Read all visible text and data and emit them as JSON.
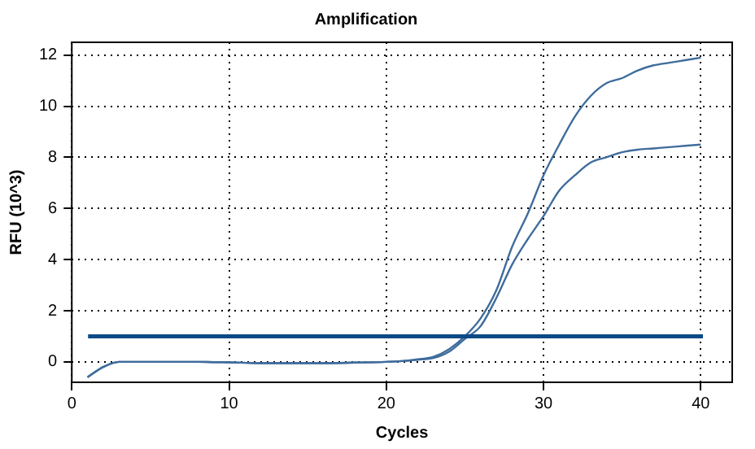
{
  "chart_data": {
    "type": "line",
    "title": "Amplification",
    "xlabel": "Cycles",
    "ylabel": "RFU (10^3)",
    "x": [
      1,
      2,
      3,
      4,
      6,
      8,
      10,
      12,
      14,
      16,
      18,
      20,
      21,
      22,
      23,
      24,
      25,
      26,
      27,
      28,
      29,
      30,
      31,
      32,
      33,
      34,
      35,
      36,
      37,
      38,
      39,
      40
    ],
    "series": [
      {
        "color": "#3f6c9c",
        "values": [
          -0.6,
          -0.2,
          0,
          0,
          0,
          0,
          -0.02,
          -0.05,
          -0.05,
          -0.05,
          -0.03,
          0,
          0.03,
          0.1,
          0.2,
          0.5,
          1.0,
          1.7,
          2.8,
          4.5,
          5.8,
          7.3,
          8.5,
          9.6,
          10.4,
          10.9,
          11.1,
          11.4,
          11.6,
          11.7,
          11.8,
          11.9
        ]
      },
      {
        "color": "#3f6c9c",
        "values": [
          -0.6,
          -0.2,
          0,
          0,
          0,
          0,
          -0.02,
          -0.05,
          -0.05,
          -0.05,
          -0.03,
          0,
          0.03,
          0.08,
          0.15,
          0.4,
          0.9,
          1.4,
          2.5,
          3.8,
          4.8,
          5.7,
          6.7,
          7.3,
          7.8,
          8.0,
          8.2,
          8.3,
          8.35,
          8.4,
          8.45,
          8.5
        ]
      }
    ],
    "ref_lines": [
      {
        "axis": "y",
        "value": 1,
        "color": "#0b4a86"
      }
    ],
    "xlim": [
      0,
      42
    ],
    "xticks": [
      0,
      10,
      20,
      30,
      40
    ],
    "ylim": [
      -0.8,
      12.5
    ],
    "yticks": [
      0,
      2,
      4,
      6,
      8,
      10,
      12
    ],
    "grid": true,
    "legend": false,
    "marker": "none",
    "line_style": "solid"
  }
}
